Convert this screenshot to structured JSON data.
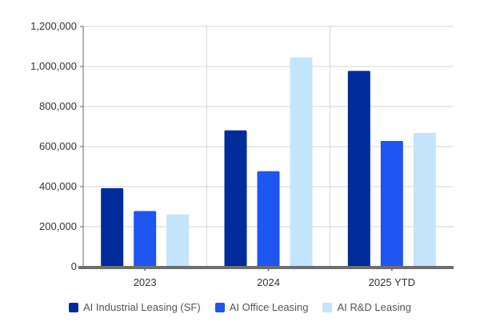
{
  "chart_data": {
    "type": "bar",
    "title": "",
    "xlabel": "",
    "ylabel": "",
    "categories": [
      "2023",
      "2024",
      "2025 YTD"
    ],
    "series": [
      {
        "name": "AI Industrial Leasing (SF)",
        "color": "#002b9a",
        "values": [
          392000,
          681000,
          978000
        ]
      },
      {
        "name": "AI Office Leasing",
        "color": "#1f55f0",
        "values": [
          278000,
          477000,
          628000
        ]
      },
      {
        "name": "AI R&D Leasing",
        "color": "#c3e4fb",
        "values": [
          261000,
          1045000,
          668000
        ]
      }
    ],
    "ylim": [
      0,
      1200000
    ],
    "yticks": [
      0,
      200000,
      400000,
      600000,
      800000,
      1000000,
      1200000
    ],
    "ytick_labels": [
      "0",
      "200,000",
      "400,000",
      "600,000",
      "800,000",
      "1,000,000",
      "1,200,000"
    ],
    "grid": true,
    "legend_position": "bottom"
  }
}
